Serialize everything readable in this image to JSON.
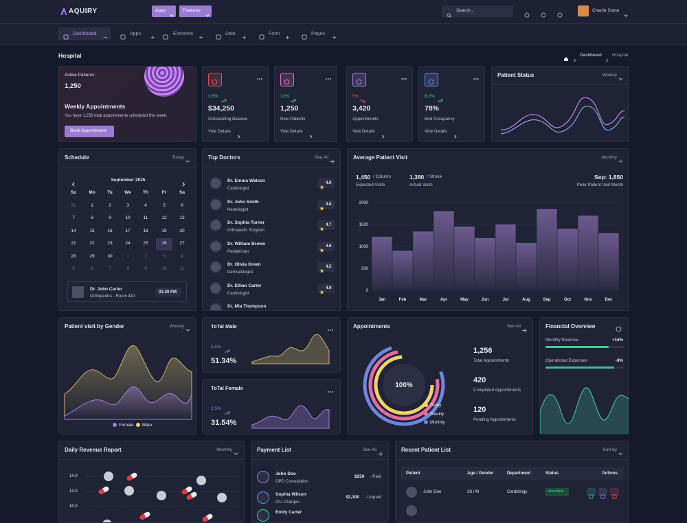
{
  "header": {
    "logo": "AQUIRY",
    "menus": [
      "Apps",
      "Features"
    ],
    "search": "Search...",
    "user": "Charlie Stone"
  },
  "nav": [
    "Dashboard",
    "Apps",
    "Elements",
    "Data",
    "Form",
    "Pages"
  ],
  "page": {
    "title": "Hospital",
    "breadcrumb": [
      "Dashboard",
      "Hospital"
    ]
  },
  "welcome": {
    "label": "Active Patients :",
    "value": "1,250",
    "heading": "Weekly Appointments",
    "text": "You have 1,256 total appointments scheduled this week.",
    "button": "Book Appointment"
  },
  "stats": [
    {
      "change": "3.5%",
      "trend": "up",
      "value": "$34,250",
      "label": "Outstanding Balance",
      "link": "Vide Details",
      "color": "#e0525d"
    },
    {
      "change": "12%",
      "trend": "up",
      "value": "1,250",
      "label": "New Patients",
      "link": "Vide Details",
      "color": "#d672c0"
    },
    {
      "change": "5%",
      "trend": "down",
      "value": "3,420",
      "label": "Appointments",
      "link": "Vide Details",
      "color": "#a682e0"
    },
    {
      "change": "8.2%",
      "trend": "up",
      "value": "78%",
      "label": "Bed Occupancy",
      "link": "Vide Details",
      "color": "#6f86e0"
    }
  ],
  "patient_status": {
    "title": "Patient Status",
    "filter": "Weekly"
  },
  "schedule": {
    "title": "Schedule",
    "filter": "Today",
    "month": "September 2025",
    "weekdays": [
      "Su",
      "Mo",
      "Tu",
      "We",
      "Th",
      "Fr",
      "Sa"
    ],
    "days": [
      [
        31,
        1,
        2,
        3,
        4,
        5,
        6
      ],
      [
        7,
        8,
        9,
        10,
        11,
        12,
        13
      ],
      [
        14,
        15,
        16,
        17,
        18,
        19,
        20
      ],
      [
        21,
        22,
        23,
        24,
        25,
        26,
        27
      ],
      [
        28,
        29,
        30,
        1,
        2,
        3,
        4
      ],
      [
        5,
        6,
        7,
        8,
        9,
        10,
        11
      ]
    ],
    "selected": 26,
    "event": {
      "name": "Dr. John Carter",
      "detail": "Orthopedics - Room 410",
      "time": "01:30 PM"
    }
  },
  "doctors": {
    "title": "Top Doctors",
    "link": "See All",
    "items": [
      {
        "name": "Dr. Emma Watson",
        "specialty": "Cardiologist",
        "rating": 4.9
      },
      {
        "name": "Dr. John Smith",
        "specialty": "Neurologist",
        "rating": 4.8
      },
      {
        "name": "Dr. Sophia Turner",
        "specialty": "Orthopedic Surgeon",
        "rating": 4.7
      },
      {
        "name": "Dr. William Brown",
        "specialty": "Pediatrician",
        "rating": 4.6
      },
      {
        "name": "Dr. Olivia Green",
        "specialty": "Dermatologist",
        "rating": 4.5
      },
      {
        "name": "Dr. Ethan Carter",
        "specialty": "Cardiologist",
        "rating": 4.9
      },
      {
        "name": "Dr. Mia Thompson"
      }
    ]
  },
  "visit_chart": {
    "type": "bar",
    "title": "Average Patient Visit",
    "filter": "Monthly",
    "summary": [
      {
        "value": "1,450",
        "unit": "/ Column",
        "label": "Expected Visits"
      },
      {
        "value": "1,380",
        "unit": "/ Stroke",
        "label": "Actual Visits"
      },
      {
        "value": "Sep: 1,850",
        "label": "Peak Patient Visit Month"
      }
    ],
    "categories": [
      "Jan",
      "Feb",
      "Mar",
      "Apr",
      "May",
      "Jun",
      "Jul",
      "Aug",
      "Sep",
      "Oct",
      "Nov",
      "Dec"
    ],
    "values": [
      1220,
      900,
      1340,
      1800,
      1450,
      1190,
      1500,
      1080,
      1850,
      1400,
      1700,
      1300
    ],
    "color": "#6b5a8e",
    "ylim": [
      0,
      2000
    ],
    "yticks": [
      0,
      500,
      1000,
      1500,
      2000
    ],
    "grid": true
  },
  "gender": {
    "title": "Patient visit by Gender",
    "filter": "Weekly",
    "legend": [
      {
        "name": "Female",
        "color": "#a07fd8"
      },
      {
        "name": "Male",
        "color": "#e6cf7a"
      }
    ]
  },
  "total_male": {
    "title": "ToTal Male",
    "change": "3.5%",
    "value": "51.34%"
  },
  "total_female": {
    "title": "ToTal Female",
    "change": "2.5%",
    "value": "31.54%"
  },
  "appointments": {
    "title": "Appointments",
    "link": "See All",
    "center": "100%",
    "legend": [
      {
        "name": "Today",
        "color": "#f2d36b"
      },
      {
        "name": "Weekly",
        "color": "#e56ca6"
      },
      {
        "name": "Monthly",
        "color": "#6f86e0"
      }
    ],
    "stats": [
      {
        "value": "1,256",
        "label": "Total Appointments"
      },
      {
        "value": "420",
        "label": "Completed Appointments"
      },
      {
        "value": "120",
        "label": "Pending Appointments"
      }
    ]
  },
  "financial": {
    "title": "Financial Overview",
    "items": [
      {
        "label": "Monthly Revenue",
        "value": "+15%"
      },
      {
        "label": "Operational Expenses",
        "value": "-8%"
      }
    ]
  },
  "revenue": {
    "title": "Daily Revenue Report",
    "filter": "Monthly",
    "yticks": [
      "14.0",
      "12.0",
      "10.0"
    ]
  },
  "payments": {
    "title": "Payment List",
    "link": "See All",
    "items": [
      {
        "name": "John Doe",
        "detail": "OPD Consultation",
        "amount": "$250",
        "status": "- Paid"
      },
      {
        "name": "Sophia Wilson",
        "detail": "ICU Charges",
        "amount": "$2,300",
        "status": "- Unpaid"
      },
      {
        "name": "Emily Carter"
      }
    ]
  },
  "patients": {
    "title": "Recent Patient List",
    "filter": "Sort by",
    "columns": [
      "Patient",
      "Age / Gender",
      "Department",
      "Status",
      "Actions"
    ],
    "rows": [
      {
        "name": "John Doe",
        "age_gender": "28 / M",
        "department": "Cardiology",
        "status": "Admitted"
      }
    ]
  }
}
